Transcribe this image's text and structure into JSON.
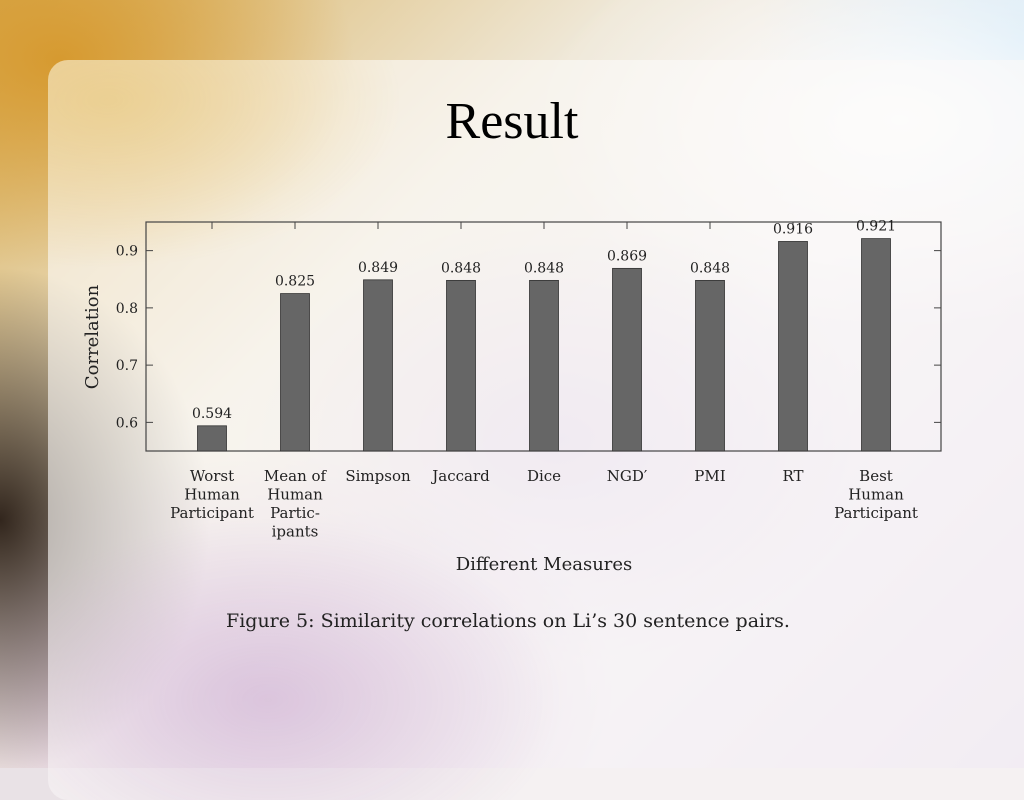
{
  "slide": {
    "title": "Result"
  },
  "chart_data": {
    "type": "bar",
    "categories": [
      [
        "Worst",
        "Human",
        "Participant"
      ],
      [
        "Mean of",
        "Human",
        "Partic-",
        "ipants"
      ],
      [
        "Simpson"
      ],
      [
        "Jaccard"
      ],
      [
        "Dice"
      ],
      [
        "NGD′"
      ],
      [
        "PMI"
      ],
      [
        "RT"
      ],
      [
        "Best",
        "Human",
        "Participant"
      ]
    ],
    "values": [
      0.594,
      0.825,
      0.849,
      0.848,
      0.848,
      0.869,
      0.848,
      0.916,
      0.921
    ],
    "value_labels": [
      "0.594",
      "0.825",
      "0.849",
      "0.848",
      "0.848",
      "0.869",
      "0.848",
      "0.916",
      "0.921"
    ],
    "xlabel": "Different Measures",
    "ylabel": "Correlation",
    "ylim": [
      0.55,
      0.95
    ],
    "yticks": [
      0.6,
      0.7,
      0.8,
      0.9
    ],
    "ytick_labels": [
      "0.6",
      "0.7",
      "0.8",
      "0.9"
    ],
    "bar_color": "#666666",
    "grid": false,
    "caption": "Figure 5: Similarity correlations on Li’s 30 sentence pairs."
  }
}
